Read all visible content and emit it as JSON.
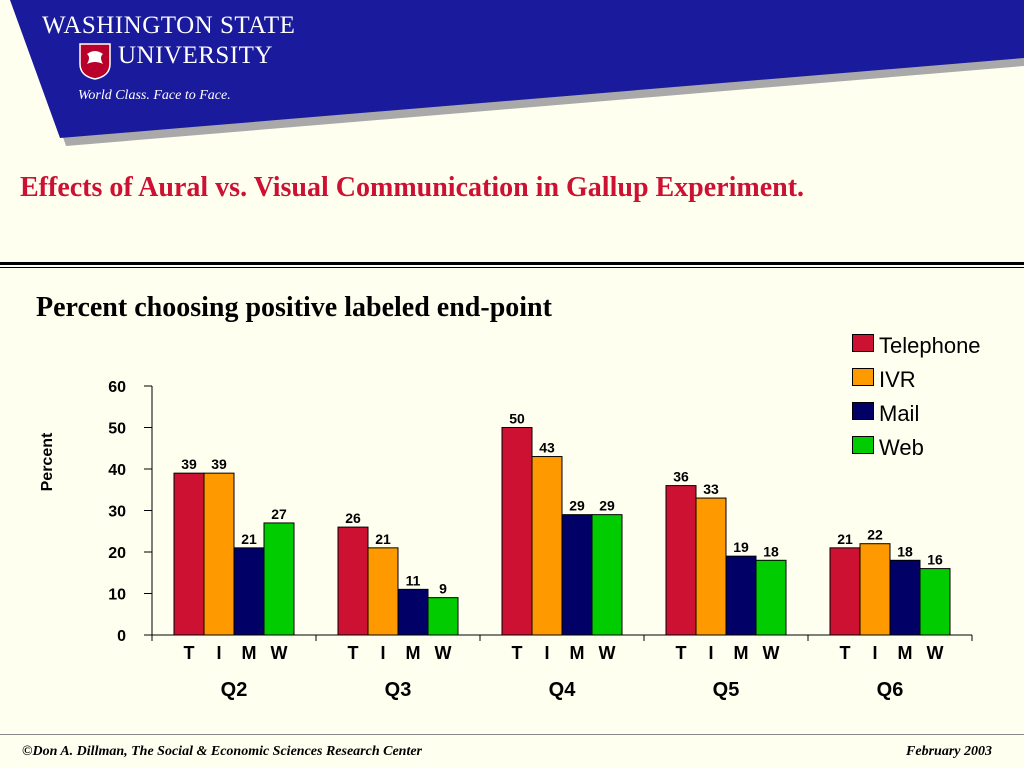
{
  "header": {
    "university_line1": "WASHINGTON STATE",
    "university_line2": "UNIVERSITY",
    "tagline": "World Class. Face to Face.",
    "banner_color": "#1a1a9c",
    "banner_shadow_color": "#a0a0a0"
  },
  "slide_title": "Effects of Aural vs. Visual Communication in Gallup Experiment.",
  "chart_title": "Percent choosing positive labeled end-point",
  "chart_data": {
    "type": "bar",
    "ylabel": "Percent",
    "ylim": [
      0,
      60
    ],
    "yticks": [
      0,
      10,
      20,
      30,
      40,
      50,
      60
    ],
    "grid": false,
    "legend_position": "top-right",
    "groups": [
      "Q2",
      "Q3",
      "Q4",
      "Q5",
      "Q6"
    ],
    "sub_labels": [
      "T",
      "I",
      "M",
      "W"
    ],
    "series": [
      {
        "name": "Telephone",
        "color": "#cc1133",
        "values": [
          39,
          26,
          50,
          36,
          21
        ]
      },
      {
        "name": "IVR",
        "color": "#ff9900",
        "values": [
          39,
          21,
          43,
          33,
          22
        ]
      },
      {
        "name": "Mail",
        "color": "#000066",
        "values": [
          21,
          11,
          29,
          19,
          18
        ]
      },
      {
        "name": "Web",
        "color": "#00cc00",
        "values": [
          27,
          9,
          29,
          18,
          16
        ]
      }
    ]
  },
  "footer": {
    "left": "©Don A. Dillman, The Social & Economic Sciences Research Center",
    "right": "February 2003"
  }
}
